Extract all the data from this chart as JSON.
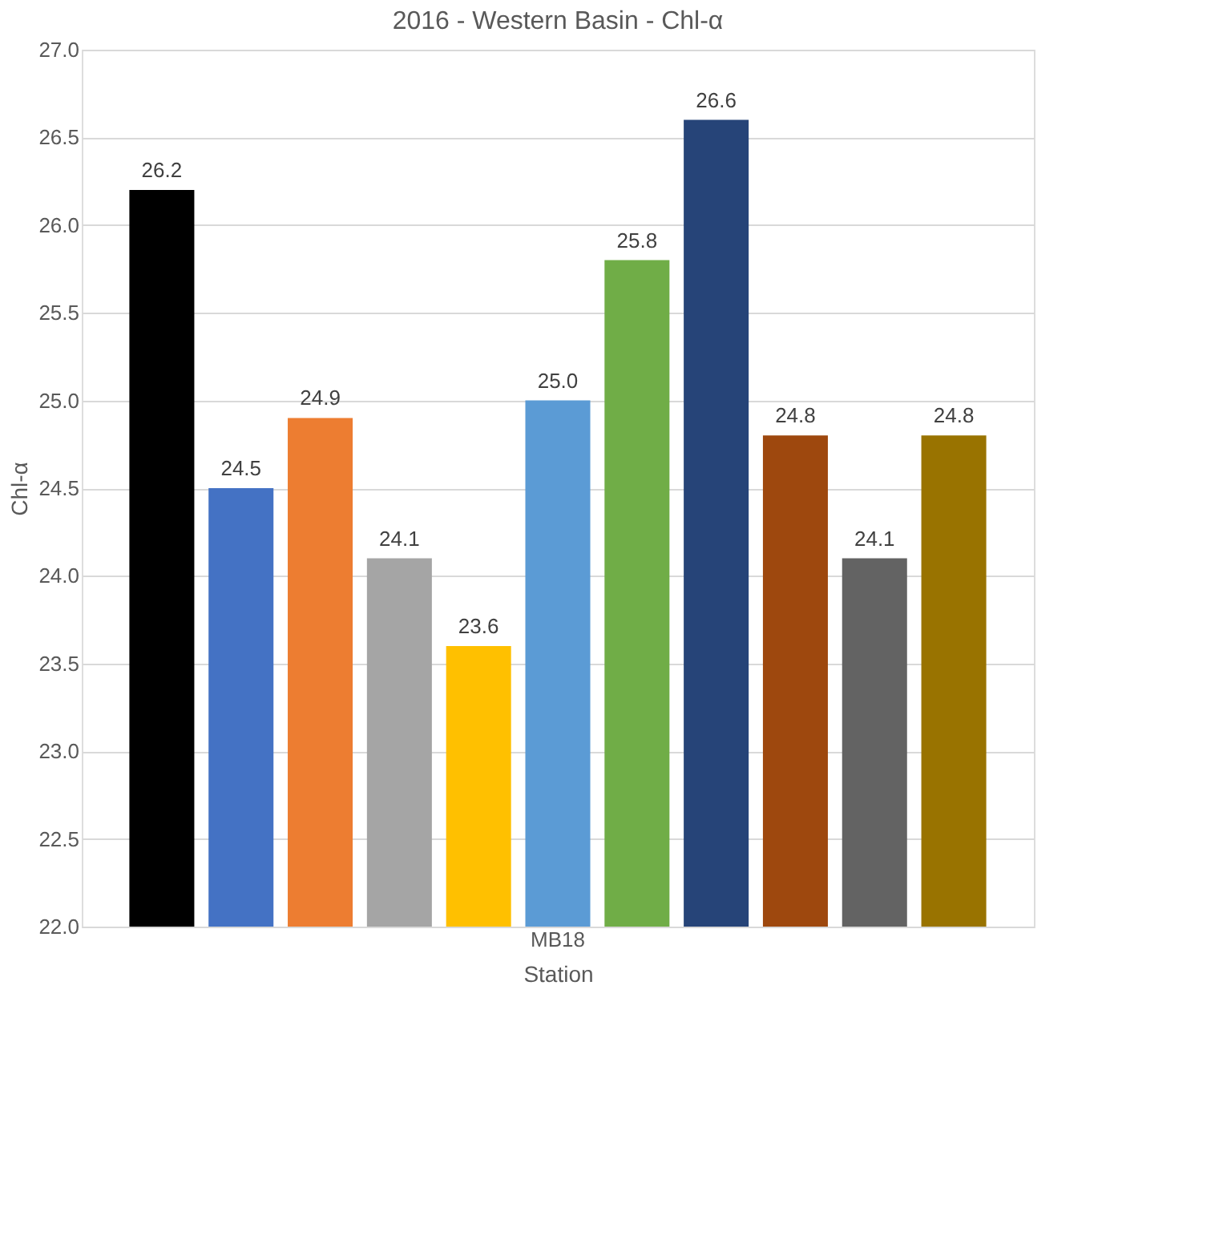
{
  "chart_data": {
    "type": "bar",
    "title": "2016 - Western Basin - Chl-α",
    "xlabel": "Station",
    "ylabel": "Chl-α",
    "categories": [
      "MB18"
    ],
    "series": [
      {
        "color": "#000000",
        "values": [
          26.2
        ],
        "value_labels": [
          "26.2"
        ]
      },
      {
        "color": "#4472c4",
        "values": [
          24.5
        ],
        "value_labels": [
          "24.5"
        ]
      },
      {
        "color": "#ed7d31",
        "values": [
          24.9
        ],
        "value_labels": [
          "24.9"
        ]
      },
      {
        "color": "#a5a5a5",
        "values": [
          24.1
        ],
        "value_labels": [
          "24.1"
        ]
      },
      {
        "color": "#ffc000",
        "values": [
          23.6
        ],
        "value_labels": [
          "23.6"
        ]
      },
      {
        "color": "#5b9bd5",
        "values": [
          25.0
        ],
        "value_labels": [
          "25.0"
        ]
      },
      {
        "color": "#70ad47",
        "values": [
          25.8
        ],
        "value_labels": [
          "25.8"
        ]
      },
      {
        "color": "#264478",
        "values": [
          26.6
        ],
        "value_labels": [
          "26.6"
        ]
      },
      {
        "color": "#9e480e",
        "values": [
          24.8
        ],
        "value_labels": [
          "24.8"
        ]
      },
      {
        "color": "#636363",
        "values": [
          24.1
        ],
        "value_labels": [
          "24.1"
        ]
      },
      {
        "color": "#997300",
        "values": [
          24.8
        ],
        "value_labels": [
          "24.8"
        ]
      }
    ],
    "ylim": [
      22,
      27
    ],
    "yticks": [
      {
        "value": 22,
        "label": "22.0"
      },
      {
        "value": 22.5,
        "label": "22.5"
      },
      {
        "value": 23,
        "label": "23.0"
      },
      {
        "value": 23.5,
        "label": "23.5"
      },
      {
        "value": 24,
        "label": "24.0"
      },
      {
        "value": 24.5,
        "label": "24.5"
      },
      {
        "value": 25,
        "label": "25.0"
      },
      {
        "value": 25.5,
        "label": "25.5"
      },
      {
        "value": 26,
        "label": "26.0"
      },
      {
        "value": 26.5,
        "label": "26.5"
      },
      {
        "value": 27,
        "label": "27.0"
      }
    ],
    "grid": "y",
    "legend": false
  }
}
